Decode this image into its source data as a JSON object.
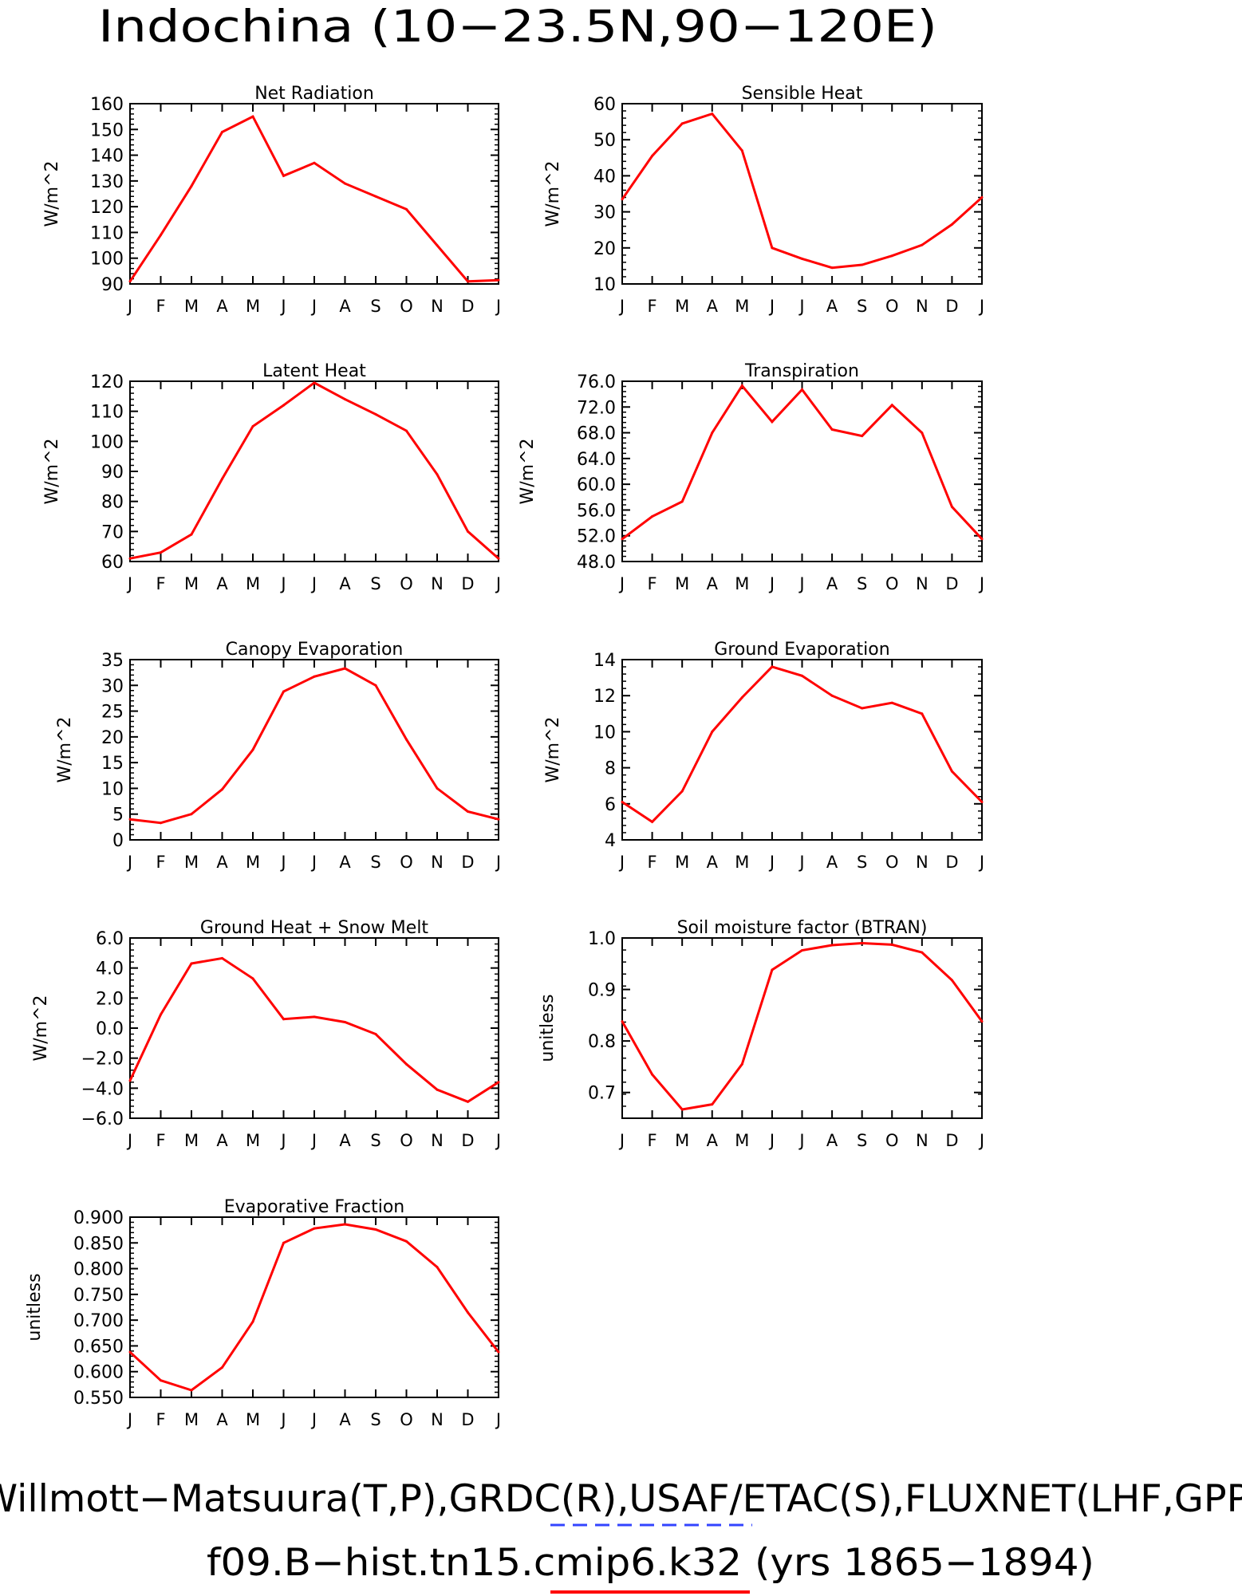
{
  "figure": {
    "title": "Indochina (10−23.5N,90−120E)",
    "footer_line1": "Willmott−Matsuura(T,P),GRDC(R),USAF/ETAC(S),FLUXNET(LHF,GPP)",
    "footer_line2": "f09.B−hist.tn15.cmip6.k32 (yrs 1865−1894)",
    "colors": {
      "series": "#ff0000",
      "obs_legend_dash": "#3344ff",
      "axes": "#000000"
    }
  },
  "chart_data": [
    {
      "type": "line",
      "title": "Net Radiation",
      "ylabel": "W/m^2",
      "ylim": [
        90,
        160
      ],
      "yticks": [
        "90",
        "100",
        "110",
        "120",
        "130",
        "140",
        "150",
        "160"
      ],
      "categories": [
        "J",
        "F",
        "M",
        "A",
        "M",
        "J",
        "J",
        "A",
        "S",
        "O",
        "N",
        "D",
        "J"
      ],
      "series": [
        {
          "values": [
            91,
            109,
            128,
            149,
            155,
            132,
            137,
            129,
            124,
            119,
            105,
            91,
            91.5
          ]
        }
      ]
    },
    {
      "type": "line",
      "title": "Sensible Heat",
      "ylabel": "W/m^2",
      "ylim": [
        10,
        60
      ],
      "yticks": [
        "10",
        "20",
        "30",
        "40",
        "50",
        "60"
      ],
      "categories": [
        "J",
        "F",
        "M",
        "A",
        "M",
        "J",
        "J",
        "A",
        "S",
        "O",
        "N",
        "D",
        "J"
      ],
      "series": [
        {
          "values": [
            33.5,
            45.5,
            54.5,
            57.2,
            47,
            20,
            17,
            14.5,
            15.3,
            17.8,
            20.8,
            26.5,
            34
          ]
        }
      ]
    },
    {
      "type": "line",
      "title": "Latent Heat",
      "ylabel": "W/m^2",
      "ylim": [
        60,
        120
      ],
      "yticks": [
        "60",
        "70",
        "80",
        "90",
        "100",
        "110",
        "120"
      ],
      "categories": [
        "J",
        "F",
        "M",
        "A",
        "M",
        "J",
        "J",
        "A",
        "S",
        "O",
        "N",
        "D",
        "J"
      ],
      "series": [
        {
          "values": [
            61,
            63,
            69,
            87.5,
            105,
            112,
            119.5,
            114,
            109,
            103.5,
            89,
            70,
            61
          ]
        }
      ]
    },
    {
      "type": "line",
      "title": "Transpiration",
      "ylabel": "W/m^2",
      "ylim": [
        48,
        76
      ],
      "yticks": [
        "48.0",
        "52.0",
        "56.0",
        "60.0",
        "64.0",
        "68.0",
        "72.0",
        "76.0"
      ],
      "categories": [
        "J",
        "F",
        "M",
        "A",
        "M",
        "J",
        "J",
        "A",
        "S",
        "O",
        "N",
        "D",
        "J"
      ],
      "series": [
        {
          "values": [
            51.5,
            55,
            57.3,
            68,
            75.3,
            69.7,
            74.7,
            68.5,
            67.5,
            72.3,
            68,
            56.5,
            51.5
          ]
        }
      ]
    },
    {
      "type": "line",
      "title": "Canopy Evaporation",
      "ylabel": "W/m^2",
      "ylim": [
        0,
        35
      ],
      "yticks": [
        "0",
        "5",
        "10",
        "15",
        "20",
        "25",
        "30",
        "35"
      ],
      "categories": [
        "J",
        "F",
        "M",
        "A",
        "M",
        "J",
        "J",
        "A",
        "S",
        "O",
        "N",
        "D",
        "J"
      ],
      "series": [
        {
          "values": [
            4,
            3.3,
            5,
            9.8,
            17.5,
            28.8,
            31.7,
            33.3,
            30,
            19.5,
            10,
            5.5,
            4
          ]
        }
      ]
    },
    {
      "type": "line",
      "title": "Ground Evaporation",
      "ylabel": "W/m^2",
      "ylim": [
        4,
        14
      ],
      "yticks": [
        "4",
        "6",
        "8",
        "10",
        "12",
        "14"
      ],
      "categories": [
        "J",
        "F",
        "M",
        "A",
        "M",
        "J",
        "J",
        "A",
        "S",
        "O",
        "N",
        "D",
        "J"
      ],
      "series": [
        {
          "values": [
            6.1,
            5,
            6.7,
            10,
            11.9,
            13.6,
            13.1,
            12,
            11.3,
            11.6,
            11,
            7.8,
            6.1
          ]
        }
      ]
    },
    {
      "type": "line",
      "title": "Ground Heat + Snow Melt",
      "ylabel": "W/m^2",
      "ylim": [
        -6,
        6
      ],
      "yticks": [
        "−6.0",
        "−4.0",
        "−2.0",
        "0.0",
        "2.0",
        "4.0",
        "6.0"
      ],
      "categories": [
        "J",
        "F",
        "M",
        "A",
        "M",
        "J",
        "J",
        "A",
        "S",
        "O",
        "N",
        "D",
        "J"
      ],
      "series": [
        {
          "values": [
            -3.5,
            0.9,
            4.3,
            4.65,
            3.3,
            0.6,
            0.75,
            0.4,
            -0.4,
            -2.4,
            -4.1,
            -4.9,
            -3.6
          ]
        }
      ]
    },
    {
      "type": "line",
      "title": "Soil moisture factor (BTRAN)",
      "ylabel": "unitless",
      "ylim": [
        0.65,
        1.0
      ],
      "yticks": [
        "0.7",
        "0.8",
        "0.9",
        "1.0"
      ],
      "categories": [
        "J",
        "F",
        "M",
        "A",
        "M",
        "J",
        "J",
        "A",
        "S",
        "O",
        "N",
        "D",
        "J"
      ],
      "series": [
        {
          "values": [
            0.838,
            0.735,
            0.667,
            0.677,
            0.755,
            0.938,
            0.976,
            0.986,
            0.99,
            0.987,
            0.972,
            0.918,
            0.838
          ]
        }
      ]
    },
    {
      "type": "line",
      "title": "Evaporative Fraction",
      "ylabel": "unitless",
      "ylim": [
        0.55,
        0.9
      ],
      "yticks": [
        "0.550",
        "0.600",
        "0.650",
        "0.700",
        "0.750",
        "0.800",
        "0.850",
        "0.900"
      ],
      "categories": [
        "J",
        "F",
        "M",
        "A",
        "M",
        "J",
        "J",
        "A",
        "S",
        "O",
        "N",
        "D",
        "J"
      ],
      "series": [
        {
          "values": [
            0.638,
            0.583,
            0.564,
            0.608,
            0.697,
            0.85,
            0.878,
            0.886,
            0.876,
            0.853,
            0.803,
            0.715,
            0.638
          ]
        }
      ]
    }
  ]
}
